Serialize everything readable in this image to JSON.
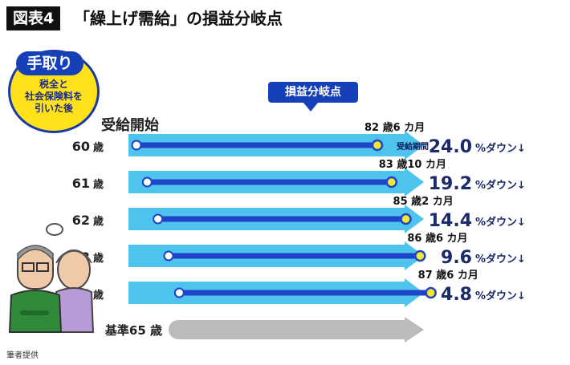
{
  "header": {
    "badge": "図表4",
    "title": "「繰上げ需給」の損益分岐点"
  },
  "tedori": {
    "tag": "手取り",
    "note": "税全と\n社会保険料を\n引いた後"
  },
  "callout": {
    "label": "損益分岐点"
  },
  "start_label": "受給開始",
  "footer_note": "筆者提供",
  "colors": {
    "arrow": "#4dc3ee",
    "bar": "#1f44c8",
    "marker": "#f5e82a",
    "baseline_arrow": "#bbbbbb",
    "percent_text": "#1a2a6a"
  },
  "chart_data": {
    "type": "bar",
    "title": "「繰上げ需給」の損益分岐点",
    "categories": [
      "60",
      "61",
      "62",
      "63",
      "64"
    ],
    "category_suffix": "歳",
    "series": [
      {
        "break_even_age": [
          {
            "years": 82,
            "months": 6
          },
          {
            "years": 83,
            "months": 10
          },
          {
            "years": 85,
            "months": 2
          },
          {
            "years": 86,
            "months": 6
          },
          {
            "years": 87,
            "months": 6
          }
        ],
        "break_even_labels": [
          "82 歳6 カ月",
          "83 歳10 カ月",
          "85 歳2 カ月",
          "86 歳6 カ月",
          "87 歳6 カ月"
        ],
        "reduction_percent": [
          24.0,
          19.2,
          14.4,
          9.6,
          4.8
        ],
        "reduction_labels": [
          "24.0",
          "19.2",
          "14.4",
          "9.6",
          "4.8"
        ]
      }
    ],
    "percent_suffix": "%ダウン↓",
    "first_row_marker_note": "受給期間",
    "baseline": {
      "label": "基準65 歳",
      "age": 65
    }
  }
}
